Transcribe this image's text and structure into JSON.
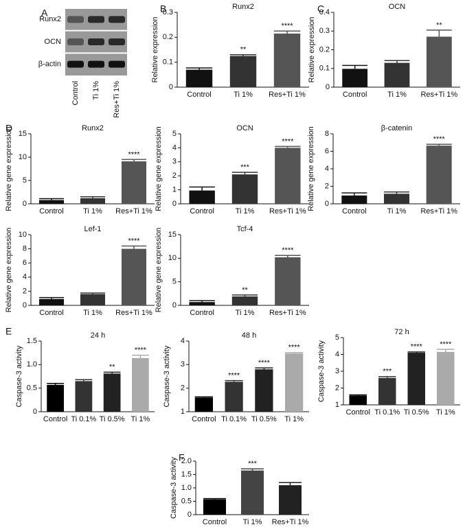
{
  "chart_data": [
    {
      "type": "blot",
      "panel": "A",
      "rows": [
        "Runx2",
        "OCN",
        "β-actin"
      ],
      "categories": [
        "Control",
        "Ti 1%",
        "Res+Ti 1%"
      ]
    },
    {
      "type": "bar",
      "panel": "B",
      "title": "Runx2",
      "ylabel": "Relative expression",
      "categories": [
        "Control",
        "Ti 1%",
        "Res+Ti 1%"
      ],
      "values": [
        0.07,
        0.125,
        0.215
      ],
      "errors": [
        0.007,
        0.005,
        0.01
      ],
      "annotations": [
        null,
        "**",
        "****"
      ],
      "colors": [
        "#111111",
        "#333333",
        "#555555"
      ],
      "ylim": [
        0,
        0.3
      ],
      "yticks": [
        0,
        0.1,
        0.2,
        0.3
      ]
    },
    {
      "type": "bar",
      "panel": "C",
      "title": "OCN",
      "ylabel": "Relative expression",
      "categories": [
        "Control",
        "Ti 1%",
        "Res+Ti 1%"
      ],
      "values": [
        0.098,
        0.13,
        0.27
      ],
      "errors": [
        0.018,
        0.012,
        0.035
      ],
      "annotations": [
        null,
        null,
        "**"
      ],
      "colors": [
        "#111111",
        "#333333",
        "#555555"
      ],
      "ylim": [
        0,
        0.4
      ],
      "yticks": [
        0,
        0.1,
        0.2,
        0.3,
        0.4
      ]
    },
    {
      "type": "bar",
      "panel": "D",
      "title": "Runx2",
      "ylabel": "Relative gene expression",
      "categories": [
        "Control",
        "Ti 1%",
        "Res+Ti 1%"
      ],
      "values": [
        0.8,
        1.2,
        9.1
      ],
      "errors": [
        0.3,
        0.3,
        0.4
      ],
      "annotations": [
        null,
        null,
        "****"
      ],
      "colors": [
        "#111111",
        "#333333",
        "#555555"
      ],
      "ylim": [
        0,
        15
      ],
      "yticks": [
        0,
        5,
        10,
        15
      ]
    },
    {
      "type": "bar",
      "title": "OCN",
      "ylabel": "Relative gene expression",
      "categories": [
        "Control",
        "Ti 1%",
        "Res+Ti 1%"
      ],
      "values": [
        0.95,
        2.1,
        4.0
      ],
      "errors": [
        0.25,
        0.15,
        0.1
      ],
      "annotations": [
        null,
        "***",
        "****"
      ],
      "colors": [
        "#111111",
        "#333333",
        "#555555"
      ],
      "ylim": [
        0,
        5
      ],
      "yticks": [
        0,
        1,
        2,
        3,
        4,
        5
      ]
    },
    {
      "type": "bar",
      "title": "β-catenin",
      "ylabel": "Relative gene expression",
      "categories": [
        "Control",
        "Ti 1%",
        "Res+Ti 1%"
      ],
      "values": [
        0.95,
        1.15,
        6.65
      ],
      "errors": [
        0.3,
        0.2,
        0.15
      ],
      "annotations": [
        null,
        null,
        "****"
      ],
      "colors": [
        "#111111",
        "#333333",
        "#555555"
      ],
      "ylim": [
        0,
        8
      ],
      "yticks": [
        0,
        2,
        4,
        6,
        8
      ]
    },
    {
      "type": "bar",
      "title": "Lef-1",
      "ylabel": "Relative gene expression",
      "categories": [
        "Control",
        "Ti 1%",
        "Res+Ti 1%"
      ],
      "values": [
        0.9,
        1.6,
        8.0
      ],
      "errors": [
        0.2,
        0.15,
        0.4
      ],
      "annotations": [
        null,
        null,
        "****"
      ],
      "colors": [
        "#111111",
        "#333333",
        "#555555"
      ],
      "ylim": [
        0,
        10
      ],
      "yticks": [
        0,
        2,
        4,
        6,
        8,
        10
      ]
    },
    {
      "type": "bar",
      "title": "Tcf-4",
      "ylabel": "Relative gene expression",
      "categories": [
        "Control",
        "Ti 1%",
        "Res+Ti 1%"
      ],
      "values": [
        0.7,
        1.9,
        10.2
      ],
      "errors": [
        0.3,
        0.3,
        0.4
      ],
      "annotations": [
        null,
        "**",
        "****"
      ],
      "colors": [
        "#111111",
        "#333333",
        "#555555"
      ],
      "ylim": [
        0,
        15
      ],
      "yticks": [
        0,
        5,
        10,
        15
      ]
    },
    {
      "type": "bar",
      "panel": "E",
      "title": "24 h",
      "ylabel": "Caspase-3 activity",
      "categories": [
        "Control",
        "Ti 0.1%",
        "Ti 0.5%",
        "Ti 1%"
      ],
      "values": [
        0.57,
        0.65,
        0.81,
        1.14
      ],
      "errors": [
        0.03,
        0.03,
        0.03,
        0.06
      ],
      "annotations": [
        null,
        null,
        "**",
        "****"
      ],
      "colors": [
        "#000000",
        "#333333",
        "#222222",
        "#aaaaaa"
      ],
      "ylim": [
        0,
        1.5
      ],
      "yticks": [
        0,
        0.5,
        {
          "value": 1,
          "label": "1.0"
        },
        1.5
      ]
    },
    {
      "type": "bar",
      "title": "48 h",
      "ylabel": "Caspase-3 activity",
      "categories": [
        "Control",
        "Ti 0.1%",
        "Ti 0.5%",
        "Ti 1%"
      ],
      "values": [
        1.6,
        2.27,
        2.8,
        3.47
      ],
      "errors": [
        0.03,
        0.05,
        0.06,
        0.04
      ],
      "annotations": [
        null,
        "****",
        "****",
        "****"
      ],
      "colors": [
        "#000000",
        "#333333",
        "#222222",
        "#aaaaaa"
      ],
      "ylim": [
        1,
        4
      ],
      "yticks": [
        1,
        2,
        3,
        4
      ]
    },
    {
      "type": "bar",
      "title": "72 h",
      "ylabel": "Caspase-3 activity",
      "categories": [
        "Control",
        "Ti 0.1%",
        "Ti 0.5%",
        "Ti 1%"
      ],
      "values": [
        1.55,
        2.6,
        4.1,
        4.15
      ],
      "errors": [
        0.04,
        0.08,
        0.05,
        0.15
      ],
      "annotations": [
        null,
        "***",
        "****",
        "****"
      ],
      "colors": [
        "#000000",
        "#333333",
        "#222222",
        "#aaaaaa"
      ],
      "ylim": [
        1,
        5
      ],
      "yticks": [
        1,
        2,
        3,
        4,
        5
      ]
    },
    {
      "type": "bar",
      "panel": "F",
      "ylabel": "Caspase-3 activity",
      "categories": [
        "Control",
        "Ti 1%",
        "Res+Ti 1%"
      ],
      "values": [
        0.57,
        1.65,
        1.1
      ],
      "errors": [
        0.03,
        0.06,
        0.1
      ],
      "annotations": [
        null,
        "***",
        null
      ],
      "colors": [
        "#000000",
        "#444444",
        "#222222"
      ],
      "ylim": [
        0,
        2
      ],
      "yticks": [
        0,
        0.5,
        {
          "value": 1,
          "label": "1.0"
        },
        1.5,
        {
          "value": 2,
          "label": "2.0"
        }
      ]
    }
  ]
}
